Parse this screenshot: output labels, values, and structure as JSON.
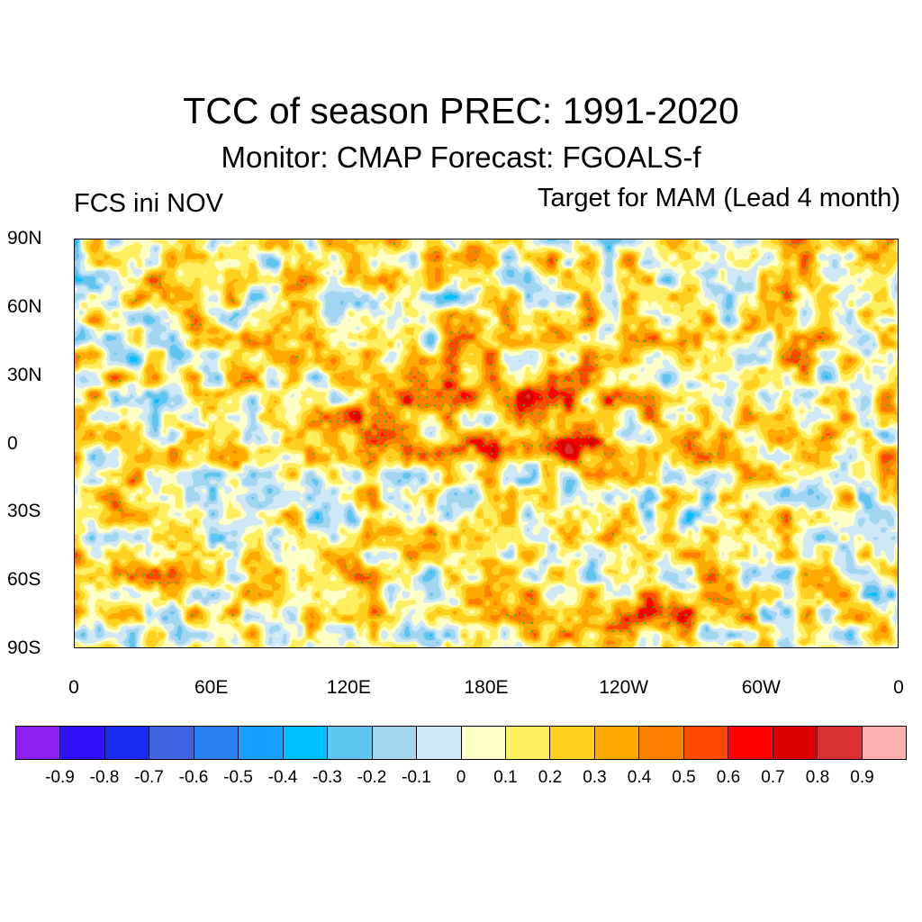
{
  "title": "TCC of season PREC: 1991-2020",
  "subtitle": "Monitor: CMAP   Forecast: FGOALS-f",
  "left_label": "FCS ini NOV",
  "right_label": "Target for MAM (Lead 4 month)",
  "chart_data": {
    "type": "heatmap",
    "y_ticks": [
      "90N",
      "60N",
      "30N",
      "0",
      "30S",
      "60S",
      "90S"
    ],
    "x_ticks": [
      "0",
      "60E",
      "120E",
      "180E",
      "120W",
      "60W",
      "0"
    ],
    "colorbar": {
      "levels": [
        "-0.9",
        "-0.8",
        "-0.7",
        "-0.6",
        "-0.5",
        "-0.4",
        "-0.3",
        "-0.2",
        "-0.1",
        "0",
        "0.1",
        "0.2",
        "0.3",
        "0.4",
        "0.5",
        "0.6",
        "0.7",
        "0.8",
        "0.9"
      ],
      "colors": [
        "#8a1ff0",
        "#3010f8",
        "#1a2cf0",
        "#4064e0",
        "#2a80f0",
        "#1aa0ff",
        "#00bfff",
        "#60c4f0",
        "#a2d6f0",
        "#cee8f8",
        "#ffffc8",
        "#ffee60",
        "#ffd020",
        "#ffaa00",
        "#ff8000",
        "#ff4800",
        "#ff0000",
        "#d80000",
        "#d83030",
        "#ffb0b0"
      ]
    }
  }
}
